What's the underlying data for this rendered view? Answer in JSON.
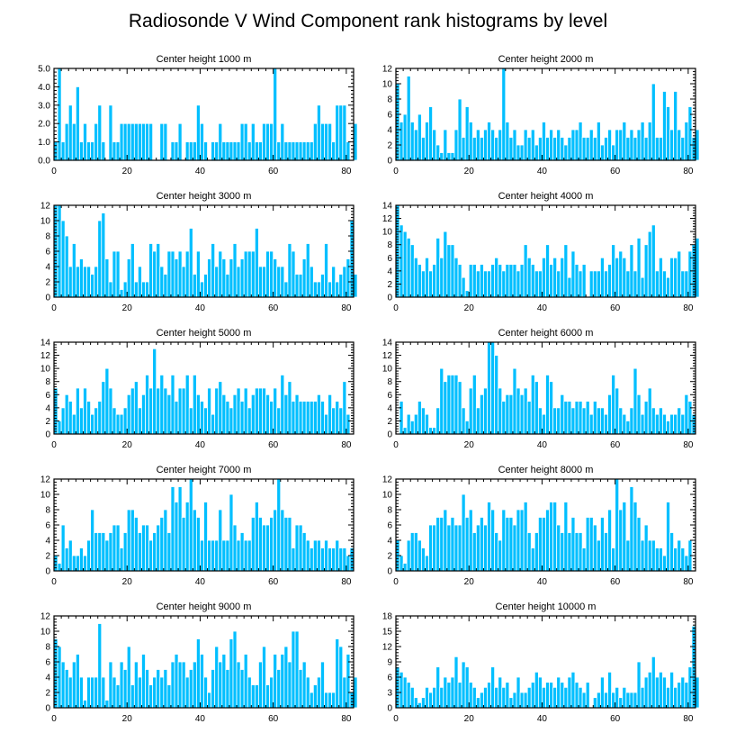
{
  "title": "Radiosonde V Wind Component rank histograms by level",
  "style": {
    "bar_color": "#00bfff",
    "bar_edge": "#ffffff",
    "axis_color": "#000000",
    "text_color": "#000000"
  },
  "x_ticks": [
    0,
    20,
    40,
    60,
    80
  ],
  "chart_data": [
    {
      "type": "bar",
      "title": "Center height 1000 m",
      "xlim": [
        0,
        82
      ],
      "ylim": [
        0,
        5
      ],
      "y_ticks": [
        "0.0",
        "1.0",
        "2.0",
        "3.0",
        "4.0",
        "5.0"
      ],
      "y_tick_values": [
        0,
        1,
        2,
        3,
        4,
        5
      ],
      "values": [
        1,
        5,
        1,
        2,
        3,
        2,
        4,
        1,
        2,
        1,
        1,
        2,
        3,
        1,
        0,
        3,
        1,
        1,
        2,
        2,
        2,
        2,
        2,
        2,
        2,
        2,
        2,
        0,
        0,
        2,
        2,
        0,
        1,
        1,
        2,
        0,
        1,
        1,
        1,
        3,
        2,
        1,
        0,
        1,
        1,
        2,
        1,
        1,
        1,
        1,
        1,
        2,
        2,
        1,
        2,
        1,
        1,
        2,
        2,
        2,
        5,
        1,
        2,
        1,
        1,
        1,
        1,
        1,
        1,
        1,
        1,
        2,
        3,
        2,
        2,
        2,
        1,
        3,
        3,
        3,
        1,
        0,
        2
      ]
    },
    {
      "type": "bar",
      "title": "Center height 2000 m",
      "xlim": [
        0,
        82
      ],
      "ylim": [
        0,
        12
      ],
      "y_ticks": [
        "0",
        "2",
        "4",
        "6",
        "8",
        "10",
        "12"
      ],
      "y_tick_values": [
        0,
        2,
        4,
        6,
        8,
        10,
        12
      ],
      "values": [
        10,
        5,
        6,
        11,
        5,
        4,
        6,
        3,
        5,
        7,
        4,
        2,
        1,
        4,
        1,
        1,
        4,
        8,
        3,
        7,
        5,
        3,
        4,
        3,
        4,
        5,
        4,
        3,
        4,
        12,
        5,
        3,
        4,
        2,
        2,
        4,
        3,
        4,
        2,
        3,
        5,
        3,
        4,
        3,
        4,
        3,
        2,
        3,
        4,
        4,
        5,
        3,
        3,
        4,
        3,
        5,
        2,
        3,
        4,
        2,
        4,
        4,
        5,
        3,
        4,
        3,
        4,
        5,
        3,
        5,
        10,
        3,
        3,
        9,
        7,
        4,
        9,
        4,
        3,
        5,
        7,
        3,
        4
      ]
    },
    {
      "type": "bar",
      "title": "Center height 3000 m",
      "xlim": [
        0,
        82
      ],
      "ylim": [
        0,
        12
      ],
      "y_ticks": [
        "0",
        "2",
        "4",
        "6",
        "8",
        "10",
        "12"
      ],
      "y_tick_values": [
        0,
        2,
        4,
        6,
        8,
        10,
        12
      ],
      "values": [
        12,
        12,
        10,
        8,
        4,
        7,
        4,
        5,
        4,
        4,
        3,
        4,
        10,
        11,
        5,
        2,
        6,
        6,
        1,
        2,
        5,
        7,
        2,
        4,
        2,
        2,
        7,
        6,
        7,
        4,
        3,
        6,
        6,
        5,
        6,
        4,
        6,
        9,
        3,
        6,
        2,
        3,
        5,
        7,
        4,
        6,
        5,
        3,
        5,
        7,
        4,
        5,
        6,
        6,
        6,
        9,
        4,
        4,
        6,
        6,
        5,
        4,
        4,
        2,
        7,
        6,
        3,
        3,
        5,
        7,
        4,
        2,
        2,
        3,
        7,
        2,
        4,
        2,
        3,
        4,
        5,
        10,
        3
      ]
    },
    {
      "type": "bar",
      "title": "Center height 4000 m",
      "xlim": [
        0,
        82
      ],
      "ylim": [
        0,
        14
      ],
      "y_ticks": [
        "0",
        "2",
        "4",
        "6",
        "8",
        "10",
        "12",
        "14"
      ],
      "y_tick_values": [
        0,
        2,
        4,
        6,
        8,
        10,
        12,
        14
      ],
      "values": [
        14,
        11,
        10,
        9,
        8,
        6,
        5,
        4,
        6,
        4,
        5,
        9,
        6,
        10,
        8,
        8,
        6,
        5,
        3,
        1,
        5,
        5,
        4,
        5,
        4,
        4,
        5,
        6,
        5,
        4,
        5,
        5,
        5,
        4,
        5,
        8,
        6,
        5,
        4,
        4,
        6,
        8,
        5,
        6,
        4,
        6,
        8,
        3,
        7,
        5,
        4,
        5,
        0,
        4,
        4,
        4,
        6,
        4,
        5,
        8,
        6,
        7,
        6,
        4,
        8,
        4,
        9,
        3,
        8,
        10,
        11,
        4,
        6,
        4,
        3,
        6,
        6,
        7,
        4,
        4,
        7,
        8,
        9
      ]
    },
    {
      "type": "bar",
      "title": "Center height 5000 m",
      "xlim": [
        0,
        82
      ],
      "ylim": [
        0,
        14
      ],
      "y_ticks": [
        "0",
        "2",
        "4",
        "6",
        "8",
        "10",
        "12",
        "14"
      ],
      "y_tick_values": [
        0,
        2,
        4,
        6,
        8,
        10,
        12,
        14
      ],
      "values": [
        7,
        2,
        4,
        6,
        5,
        3,
        7,
        4,
        7,
        5,
        3,
        4,
        5,
        8,
        10,
        7,
        4,
        3,
        3,
        4,
        6,
        7,
        8,
        4,
        6,
        9,
        7,
        13,
        7,
        9,
        7,
        6,
        9,
        5,
        7,
        7,
        9,
        4,
        9,
        6,
        5,
        4,
        7,
        3,
        7,
        8,
        6,
        5,
        4,
        6,
        7,
        5,
        7,
        4,
        6,
        7,
        7,
        7,
        6,
        5,
        7,
        4,
        9,
        6,
        8,
        5,
        6,
        5,
        5,
        5,
        5,
        5,
        6,
        5,
        3,
        6,
        4,
        5,
        4,
        8,
        3
      ]
    },
    {
      "type": "bar",
      "title": "Center height 6000 m",
      "xlim": [
        0,
        82
      ],
      "ylim": [
        0,
        14
      ],
      "y_ticks": [
        "0",
        "2",
        "4",
        "6",
        "8",
        "10",
        "12",
        "14"
      ],
      "y_tick_values": [
        0,
        2,
        4,
        6,
        8,
        10,
        12,
        14
      ],
      "values": [
        0,
        5,
        1,
        3,
        2,
        3,
        5,
        4,
        3,
        1,
        1,
        4,
        10,
        8,
        9,
        9,
        9,
        8,
        4,
        2,
        7,
        9,
        4,
        6,
        7,
        14,
        14,
        12,
        7,
        5,
        6,
        6,
        10,
        7,
        6,
        7,
        5,
        9,
        8,
        4,
        3,
        9,
        8,
        4,
        4,
        6,
        5,
        5,
        4,
        5,
        5,
        4,
        5,
        3,
        5,
        4,
        4,
        3,
        6,
        9,
        7,
        4,
        3,
        2,
        4,
        10,
        6,
        3,
        5,
        7,
        4,
        3,
        4,
        3,
        2,
        3,
        3,
        4,
        3,
        6,
        5,
        3
      ]
    },
    {
      "type": "bar",
      "title": "Center height 7000 m",
      "xlim": [
        0,
        82
      ],
      "ylim": [
        0,
        12
      ],
      "y_ticks": [
        "0",
        "2",
        "4",
        "6",
        "8",
        "10",
        "12"
      ],
      "y_tick_values": [
        0,
        2,
        4,
        6,
        8,
        10,
        12
      ],
      "values": [
        2,
        1,
        6,
        3,
        4,
        2,
        2,
        3,
        2,
        4,
        8,
        5,
        5,
        5,
        4,
        5,
        6,
        6,
        3,
        5,
        8,
        8,
        7,
        5,
        6,
        6,
        4,
        5,
        6,
        7,
        8,
        5,
        11,
        9,
        11,
        7,
        9,
        12,
        8,
        7,
        4,
        9,
        4,
        4,
        4,
        8,
        4,
        4,
        10,
        6,
        4,
        5,
        4,
        4,
        7,
        9,
        7,
        6,
        6,
        7,
        8,
        12,
        8,
        7,
        7,
        3,
        6,
        6,
        5,
        4,
        3,
        4,
        4,
        3,
        4,
        3,
        3,
        4,
        3,
        3,
        2,
        3
      ]
    },
    {
      "type": "bar",
      "title": "Center height 8000 m",
      "xlim": [
        0,
        82
      ],
      "ylim": [
        0,
        12
      ],
      "y_ticks": [
        "0",
        "2",
        "4",
        "6",
        "8",
        "10",
        "12"
      ],
      "y_tick_values": [
        0,
        2,
        4,
        6,
        8,
        10,
        12
      ],
      "values": [
        4,
        2,
        1,
        4,
        5,
        5,
        4,
        3,
        2,
        6,
        6,
        7,
        7,
        8,
        6,
        7,
        6,
        6,
        10,
        7,
        8,
        5,
        6,
        7,
        6,
        9,
        8,
        5,
        4,
        8,
        7,
        7,
        6,
        8,
        8,
        9,
        5,
        3,
        5,
        7,
        7,
        8,
        9,
        9,
        6,
        5,
        9,
        5,
        7,
        5,
        5,
        3,
        7,
        7,
        6,
        4,
        7,
        5,
        8,
        3,
        12,
        8,
        9,
        4,
        11,
        9,
        7,
        4,
        6,
        4,
        4,
        3,
        3,
        2,
        9,
        5,
        3,
        4,
        3,
        2,
        4
      ]
    },
    {
      "type": "bar",
      "title": "Center height 9000 m",
      "xlim": [
        0,
        82
      ],
      "ylim": [
        0,
        12
      ],
      "y_ticks": [
        "0",
        "2",
        "4",
        "6",
        "8",
        "10",
        "12"
      ],
      "y_tick_values": [
        0,
        2,
        4,
        6,
        8,
        10,
        12
      ],
      "values": [
        9,
        8,
        6,
        5,
        4,
        6,
        7,
        4,
        1,
        4,
        4,
        4,
        11,
        4,
        1,
        6,
        4,
        3,
        6,
        5,
        8,
        3,
        6,
        4,
        7,
        5,
        3,
        4,
        5,
        4,
        5,
        3,
        6,
        7,
        6,
        6,
        4,
        5,
        6,
        9,
        7,
        4,
        2,
        5,
        8,
        6,
        7,
        5,
        9,
        10,
        6,
        5,
        7,
        4,
        3,
        3,
        6,
        8,
        3,
        4,
        7,
        5,
        7,
        8,
        6,
        10,
        10,
        5,
        6,
        4,
        2,
        3,
        4,
        6,
        2,
        2,
        2,
        9,
        8,
        4,
        7,
        2,
        4
      ]
    },
    {
      "type": "bar",
      "title": "Center height 10000 m",
      "xlim": [
        0,
        82
      ],
      "ylim": [
        0,
        18
      ],
      "y_ticks": [
        "0",
        "3",
        "6",
        "9",
        "12",
        "15",
        "18"
      ],
      "y_tick_values": [
        0,
        3,
        6,
        9,
        12,
        15,
        18
      ],
      "values": [
        8,
        7,
        6,
        5,
        4,
        2,
        1,
        2,
        4,
        3,
        4,
        8,
        4,
        6,
        5,
        6,
        10,
        5,
        9,
        8,
        5,
        4,
        2,
        3,
        4,
        5,
        8,
        4,
        6,
        4,
        5,
        2,
        3,
        6,
        3,
        3,
        4,
        5,
        7,
        6,
        4,
        5,
        5,
        4,
        6,
        5,
        4,
        6,
        7,
        5,
        4,
        3,
        5,
        0,
        2,
        3,
        6,
        3,
        7,
        3,
        4,
        2,
        4,
        3,
        3,
        3,
        9,
        4,
        6,
        7,
        10,
        6,
        7,
        6,
        4,
        7,
        4,
        5,
        6,
        5,
        8,
        16,
        6
      ]
    }
  ]
}
